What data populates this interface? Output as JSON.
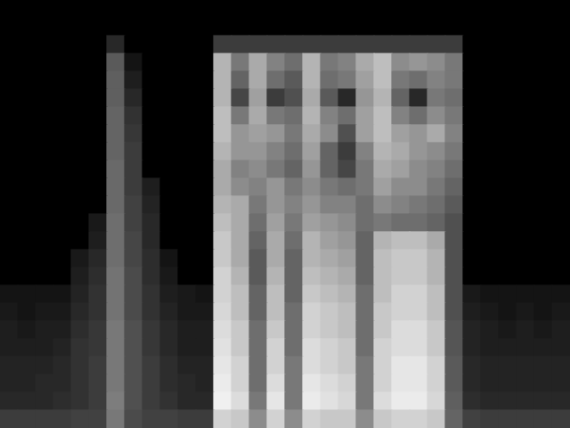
{
  "chart_data": {
    "type": "heatmap",
    "tick_labels": false,
    "cells": [
      [
        0,
        0,
        0,
        0,
        0,
        0,
        0,
        0,
        0,
        0,
        0,
        0,
        0,
        0,
        0,
        0,
        0,
        0,
        0,
        0,
        0,
        0,
        0,
        0,
        0,
        0,
        0,
        0,
        0,
        0,
        0,
        0
      ],
      [
        0,
        0,
        0,
        0,
        0,
        0,
        0,
        0,
        0,
        0,
        0,
        0,
        0,
        0,
        0,
        0,
        0,
        0,
        0,
        0,
        0,
        0,
        0,
        0,
        0,
        0,
        0,
        0,
        0,
        0,
        0,
        0
      ],
      [
        0,
        0,
        0,
        0,
        0,
        0,
        40,
        0,
        0,
        0,
        0,
        0,
        60,
        60,
        60,
        60,
        60,
        60,
        60,
        60,
        60,
        60,
        60,
        60,
        60,
        60,
        0,
        0,
        0,
        0,
        0,
        0
      ],
      [
        0,
        0,
        0,
        0,
        0,
        0,
        90,
        20,
        0,
        0,
        0,
        0,
        180,
        120,
        170,
        130,
        110,
        180,
        120,
        130,
        170,
        190,
        140,
        150,
        140,
        120,
        0,
        0,
        0,
        0,
        0,
        0
      ],
      [
        0,
        0,
        0,
        0,
        0,
        0,
        95,
        30,
        0,
        0,
        0,
        0,
        180,
        100,
        170,
        110,
        90,
        180,
        110,
        120,
        160,
        190,
        120,
        110,
        130,
        120,
        0,
        0,
        0,
        0,
        0,
        0
      ],
      [
        0,
        0,
        0,
        0,
        0,
        0,
        95,
        40,
        0,
        0,
        0,
        0,
        180,
        70,
        160,
        60,
        80,
        170,
        90,
        40,
        150,
        180,
        100,
        40,
        120,
        110,
        0,
        0,
        0,
        0,
        0,
        0
      ],
      [
        0,
        0,
        0,
        0,
        0,
        0,
        100,
        50,
        0,
        0,
        0,
        0,
        190,
        120,
        170,
        120,
        110,
        180,
        130,
        110,
        160,
        190,
        130,
        110,
        140,
        120,
        0,
        0,
        0,
        0,
        0,
        0
      ],
      [
        0,
        0,
        0,
        0,
        0,
        0,
        100,
        55,
        0,
        0,
        0,
        0,
        190,
        150,
        160,
        150,
        120,
        170,
        140,
        80,
        160,
        190,
        160,
        150,
        170,
        130,
        0,
        0,
        0,
        0,
        0,
        0
      ],
      [
        0,
        0,
        0,
        0,
        0,
        0,
        100,
        60,
        0,
        0,
        0,
        0,
        180,
        150,
        150,
        130,
        110,
        160,
        100,
        60,
        130,
        180,
        170,
        150,
        140,
        120,
        0,
        0,
        0,
        0,
        0,
        0
      ],
      [
        0,
        0,
        0,
        0,
        0,
        0,
        105,
        60,
        0,
        0,
        0,
        0,
        170,
        130,
        140,
        120,
        100,
        150,
        100,
        70,
        120,
        170,
        160,
        140,
        130,
        110,
        0,
        0,
        0,
        0,
        0,
        0
      ],
      [
        0,
        0,
        0,
        0,
        0,
        0,
        105,
        60,
        30,
        0,
        0,
        0,
        170,
        140,
        130,
        150,
        120,
        140,
        120,
        110,
        120,
        160,
        140,
        140,
        120,
        100,
        0,
        0,
        0,
        0,
        0,
        0
      ],
      [
        0,
        0,
        0,
        0,
        0,
        0,
        105,
        65,
        35,
        0,
        0,
        0,
        180,
        170,
        120,
        150,
        130,
        150,
        130,
        130,
        110,
        140,
        130,
        120,
        110,
        90,
        0,
        0,
        0,
        0,
        0,
        0
      ],
      [
        0,
        0,
        0,
        0,
        0,
        25,
        110,
        65,
        40,
        0,
        0,
        0,
        190,
        170,
        110,
        160,
        120,
        160,
        150,
        140,
        110,
        120,
        110,
        110,
        100,
        80,
        0,
        0,
        0,
        0,
        0,
        0
      ],
      [
        0,
        0,
        0,
        0,
        0,
        30,
        110,
        70,
        40,
        0,
        0,
        0,
        200,
        170,
        100,
        170,
        110,
        180,
        160,
        150,
        100,
        180,
        190,
        190,
        170,
        80,
        0,
        0,
        0,
        0,
        0,
        0
      ],
      [
        0,
        0,
        0,
        0,
        25,
        40,
        110,
        70,
        45,
        20,
        0,
        0,
        200,
        170,
        90,
        170,
        100,
        180,
        170,
        160,
        100,
        190,
        200,
        200,
        180,
        80,
        0,
        0,
        0,
        0,
        0,
        0
      ],
      [
        0,
        0,
        0,
        0,
        30,
        45,
        115,
        75,
        45,
        25,
        0,
        0,
        210,
        180,
        90,
        180,
        100,
        190,
        180,
        170,
        100,
        190,
        200,
        200,
        180,
        80,
        0,
        0,
        0,
        0,
        0,
        0
      ],
      [
        20,
        20,
        20,
        20,
        35,
        50,
        115,
        75,
        50,
        30,
        25,
        20,
        210,
        190,
        100,
        190,
        100,
        200,
        190,
        180,
        110,
        190,
        210,
        210,
        190,
        80,
        25,
        20,
        20,
        20,
        20,
        20
      ],
      [
        25,
        20,
        25,
        25,
        40,
        50,
        115,
        75,
        50,
        35,
        25,
        25,
        215,
        190,
        100,
        190,
        110,
        210,
        200,
        190,
        110,
        200,
        210,
        210,
        190,
        80,
        30,
        25,
        20,
        25,
        20,
        25
      ],
      [
        30,
        25,
        30,
        30,
        45,
        55,
        120,
        80,
        55,
        40,
        30,
        30,
        220,
        200,
        110,
        200,
        110,
        210,
        200,
        190,
        110,
        200,
        220,
        220,
        200,
        85,
        35,
        30,
        25,
        30,
        25,
        30
      ],
      [
        30,
        30,
        30,
        35,
        50,
        55,
        120,
        80,
        55,
        40,
        30,
        30,
        225,
        200,
        110,
        210,
        110,
        220,
        210,
        200,
        110,
        210,
        220,
        220,
        200,
        85,
        35,
        30,
        30,
        30,
        30,
        30
      ],
      [
        35,
        35,
        35,
        40,
        50,
        60,
        120,
        80,
        60,
        45,
        35,
        35,
        230,
        210,
        110,
        210,
        120,
        220,
        210,
        200,
        120,
        210,
        230,
        230,
        210,
        90,
        40,
        35,
        35,
        35,
        35,
        35
      ],
      [
        35,
        35,
        40,
        40,
        50,
        60,
        120,
        80,
        60,
        45,
        40,
        35,
        235,
        210,
        110,
        220,
        120,
        230,
        220,
        210,
        120,
        210,
        230,
        230,
        210,
        90,
        40,
        35,
        35,
        35,
        35,
        35
      ],
      [
        40,
        40,
        40,
        45,
        50,
        60,
        125,
        80,
        60,
        50,
        40,
        40,
        240,
        220,
        120,
        230,
        120,
        235,
        225,
        215,
        120,
        220,
        235,
        235,
        215,
        95,
        45,
        40,
        40,
        40,
        40,
        40
      ],
      [
        60,
        60,
        60,
        60,
        65,
        65,
        120,
        75,
        65,
        65,
        60,
        60,
        210,
        200,
        140,
        210,
        140,
        210,
        200,
        200,
        140,
        200,
        210,
        210,
        200,
        100,
        65,
        60,
        60,
        60,
        60,
        60
      ]
    ]
  }
}
